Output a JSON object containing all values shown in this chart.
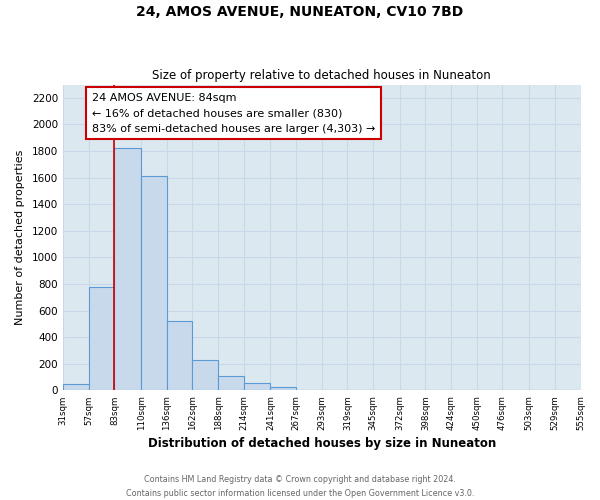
{
  "title": "24, AMOS AVENUE, NUNEATON, CV10 7BD",
  "subtitle": "Size of property relative to detached houses in Nuneaton",
  "xlabel": "Distribution of detached houses by size in Nuneaton",
  "ylabel": "Number of detached properties",
  "bin_edges": [
    31,
    57,
    83,
    110,
    136,
    162,
    188,
    214,
    241,
    267,
    293,
    319,
    345,
    372,
    398,
    424,
    450,
    476,
    503,
    529,
    555
  ],
  "bar_heights": [
    50,
    780,
    1820,
    1610,
    520,
    230,
    110,
    55,
    25,
    0,
    0,
    0,
    0,
    0,
    0,
    0,
    0,
    0,
    0,
    0
  ],
  "bar_color": "#c9d9ec",
  "bar_edge_color": "#5b9bd5",
  "property_line_x": 83,
  "property_line_color": "#cc0000",
  "ylim": [
    0,
    2300
  ],
  "yticks": [
    0,
    200,
    400,
    600,
    800,
    1000,
    1200,
    1400,
    1600,
    1800,
    2000,
    2200
  ],
  "annotation_title": "24 AMOS AVENUE: 84sqm",
  "annotation_line1": "← 16% of detached houses are smaller (830)",
  "annotation_line2": "83% of semi-detached houses are larger (4,303) →",
  "annotation_box_color": "#ffffff",
  "annotation_box_edge": "#cc0000",
  "grid_color": "#c8d8e8",
  "bg_color": "#dce8f0",
  "fig_bg_color": "#ffffff",
  "footnote1": "Contains HM Land Registry data © Crown copyright and database right 2024.",
  "footnote2": "Contains public sector information licensed under the Open Government Licence v3.0."
}
